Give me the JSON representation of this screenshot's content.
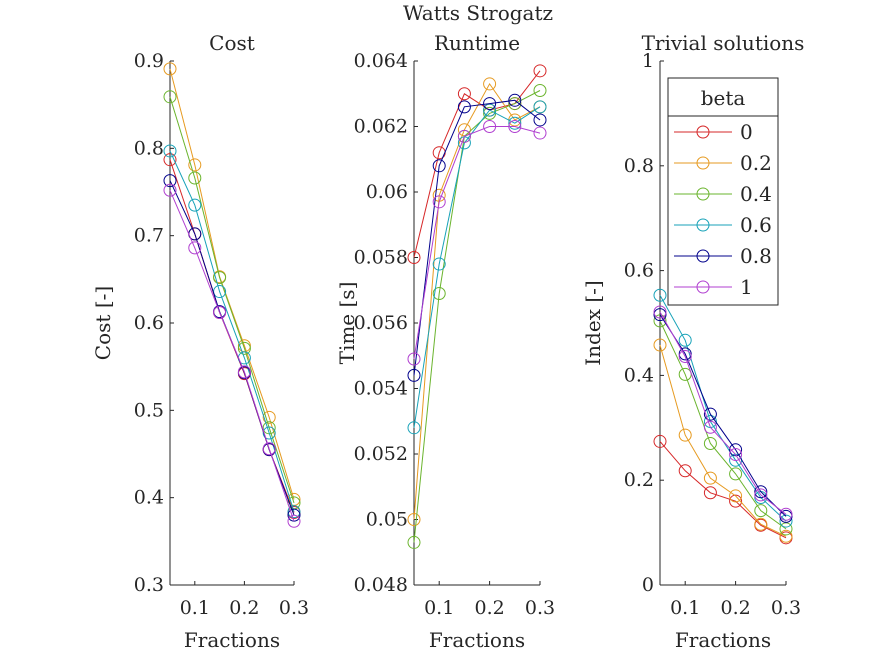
{
  "figure_title": "Watts Strogatz",
  "legend_title": "beta",
  "colors": [
    "#d62728",
    "#e69a20",
    "#6ab42d",
    "#17a2b8",
    "#00008b",
    "#b03fd0"
  ],
  "chart_data": [
    {
      "type": "line",
      "title": "Cost",
      "xlabel": "Fractions",
      "ylabel": "Cost [-]",
      "xlim": [
        0.05,
        0.3
      ],
      "ylim": [
        0.3,
        0.9
      ],
      "xticks": [
        0.1,
        0.2,
        0.3
      ],
      "xtick_labels": [
        "0.1",
        "0.2",
        "0.3"
      ],
      "yticks": [
        0.3,
        0.4,
        0.5,
        0.6,
        0.7,
        0.8,
        0.9
      ],
      "ytick_labels": [
        "0.3",
        "0.4",
        "0.5",
        "0.6",
        "0.7",
        "0.8",
        "0.9"
      ],
      "x": [
        0.05,
        0.1,
        0.15,
        0.2,
        0.25,
        0.3
      ],
      "series": [
        {
          "name": "0",
          "values": [
            0.787,
            0.702,
            0.612,
            0.542,
            0.455,
            0.383
          ]
        },
        {
          "name": "0.2",
          "values": [
            0.891,
            0.781,
            0.653,
            0.574,
            0.492,
            0.398
          ]
        },
        {
          "name": "0.4",
          "values": [
            0.859,
            0.766,
            0.652,
            0.571,
            0.48,
            0.394
          ]
        },
        {
          "name": "0.6",
          "values": [
            0.797,
            0.735,
            0.636,
            0.56,
            0.474,
            0.384
          ]
        },
        {
          "name": "0.8",
          "values": [
            0.763,
            0.702,
            0.613,
            0.543,
            0.455,
            0.38
          ]
        },
        {
          "name": "1",
          "values": [
            0.752,
            0.686,
            0.612,
            0.544,
            0.456,
            0.373
          ]
        }
      ]
    },
    {
      "type": "line",
      "title": "Runtime",
      "xlabel": "Fractions",
      "ylabel": "Time [s]",
      "xlim": [
        0.05,
        0.3
      ],
      "ylim": [
        0.048,
        0.064
      ],
      "xticks": [
        0.1,
        0.2,
        0.3
      ],
      "xtick_labels": [
        "0.1",
        "0.2",
        "0.3"
      ],
      "yticks": [
        0.048,
        0.05,
        0.052,
        0.054,
        0.056,
        0.058,
        0.06,
        0.062,
        0.064
      ],
      "ytick_labels": [
        "0.048",
        "0.05",
        "0.052",
        "0.054",
        "0.056",
        "0.058",
        "0.06",
        "0.062",
        "0.064"
      ],
      "x": [
        0.05,
        0.1,
        0.15,
        0.2,
        0.25,
        0.3
      ],
      "series": [
        {
          "name": "0",
          "values": [
            0.058,
            0.0612,
            0.063,
            0.0625,
            0.0627,
            0.0637
          ]
        },
        {
          "name": "0.2",
          "values": [
            0.05,
            0.0599,
            0.0619,
            0.0633,
            0.0622,
            0.0626
          ]
        },
        {
          "name": "0.4",
          "values": [
            0.0493,
            0.0569,
            0.0617,
            0.0624,
            0.0627,
            0.0631
          ]
        },
        {
          "name": "0.6",
          "values": [
            0.0528,
            0.0578,
            0.0615,
            0.0625,
            0.0621,
            0.0626
          ]
        },
        {
          "name": "0.8",
          "values": [
            0.0544,
            0.0608,
            0.0626,
            0.0627,
            0.0628,
            0.0622
          ]
        },
        {
          "name": "1",
          "values": [
            0.0549,
            0.0597,
            0.0617,
            0.062,
            0.062,
            0.0618
          ]
        }
      ]
    },
    {
      "type": "line",
      "title": "Trivial solutions",
      "xlabel": "Fractions",
      "ylabel": "Index [-]",
      "xlim": [
        0.05,
        0.3
      ],
      "ylim": [
        0,
        1
      ],
      "xticks": [
        0.1,
        0.2,
        0.3
      ],
      "xtick_labels": [
        "0.1",
        "0.2",
        "0.3"
      ],
      "yticks": [
        0,
        0.2,
        0.4,
        0.6,
        0.8,
        1
      ],
      "ytick_labels": [
        "0",
        "0.2",
        "0.4",
        "0.6",
        "0.8",
        "1"
      ],
      "x": [
        0.05,
        0.1,
        0.15,
        0.2,
        0.25,
        0.3
      ],
      "legend": "top-left",
      "series": [
        {
          "name": "0",
          "values": [
            0.274,
            0.218,
            0.176,
            0.16,
            0.114,
            0.09
          ]
        },
        {
          "name": "0.2",
          "values": [
            0.458,
            0.286,
            0.204,
            0.17,
            0.116,
            0.093
          ]
        },
        {
          "name": "0.4",
          "values": [
            0.504,
            0.402,
            0.27,
            0.212,
            0.142,
            0.107
          ]
        },
        {
          "name": "0.6",
          "values": [
            0.553,
            0.467,
            0.312,
            0.238,
            0.167,
            0.122
          ]
        },
        {
          "name": "0.8",
          "values": [
            0.516,
            0.441,
            0.326,
            0.258,
            0.178,
            0.131
          ]
        },
        {
          "name": "1",
          "values": [
            0.521,
            0.436,
            0.301,
            0.249,
            0.172,
            0.135
          ]
        }
      ]
    }
  ]
}
